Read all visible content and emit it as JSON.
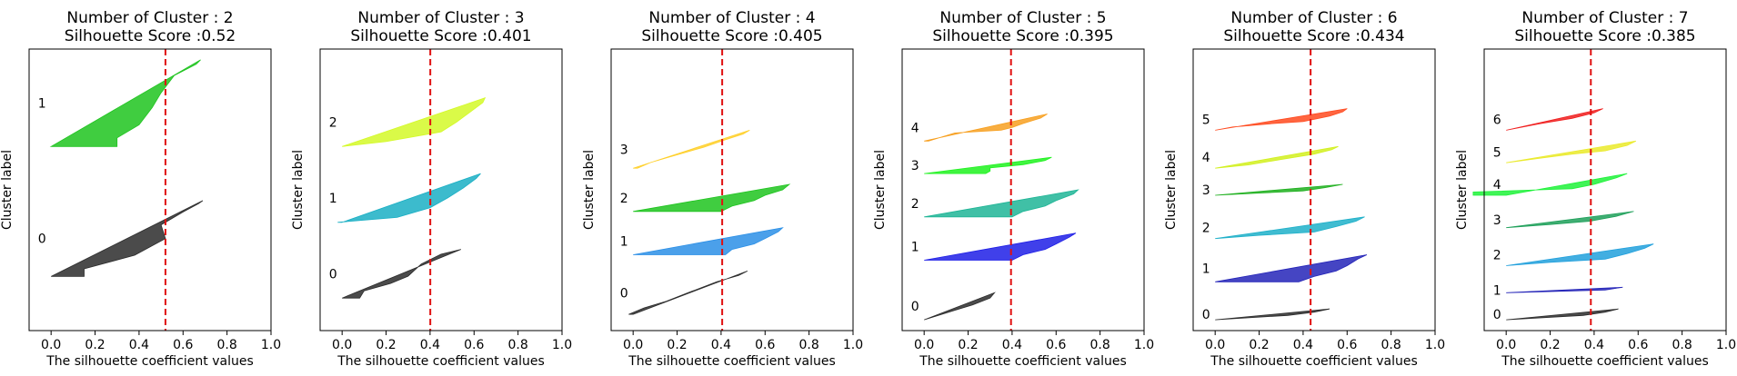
{
  "chart_data": [
    {
      "type": "area",
      "title": "Number of Cluster : 2",
      "subtitle": "Silhouette Score :0.52",
      "xlabel": "The silhouette coefficient values",
      "ylabel": "Cluster label",
      "xlim": [
        -0.1,
        1.0
      ],
      "xticks": [
        "0.0",
        "0.2",
        "0.4",
        "0.6",
        "0.8",
        "1.0"
      ],
      "score": 0.52,
      "clusters": [
        {
          "label": "0",
          "color": "#2b2b2b",
          "ymin": 10,
          "ymax": 24,
          "profile": [
            [
              0,
              0.69
            ],
            [
              0.04,
              0.67
            ],
            [
              0.15,
              0.6
            ],
            [
              0.32,
              0.5
            ],
            [
              0.5,
              0.52
            ],
            [
              0.72,
              0.38
            ],
            [
              0.9,
              0.15
            ],
            [
              1,
              0.15
            ]
          ]
        },
        {
          "label": "1",
          "color": "#1fc41f",
          "ymin": 34,
          "ymax": 50,
          "profile": [
            [
              0,
              0.68
            ],
            [
              0.05,
              0.66
            ],
            [
              0.18,
              0.56
            ],
            [
              0.38,
              0.5
            ],
            [
              0.55,
              0.46
            ],
            [
              0.75,
              0.4
            ],
            [
              0.9,
              0.3
            ],
            [
              1,
              0.3
            ]
          ]
        }
      ]
    },
    {
      "type": "area",
      "title": "Number of Cluster : 3",
      "subtitle": "Silhouette Score :0.401",
      "xlabel": "The silhouette coefficient values",
      "ylabel": "Cluster label",
      "xlim": [
        -0.1,
        1.0
      ],
      "xticks": [
        "0.0",
        "0.2",
        "0.4",
        "0.6",
        "0.8",
        "1.0"
      ],
      "score": 0.401,
      "clusters": [
        {
          "label": "0",
          "color": "#2b2b2b",
          "ymin": 6,
          "ymax": 15,
          "profile": [
            [
              0,
              0.54
            ],
            [
              0.1,
              0.45
            ],
            [
              0.3,
              0.36
            ],
            [
              0.55,
              0.3
            ],
            [
              0.7,
              0.22
            ],
            [
              0.85,
              0.1
            ],
            [
              1,
              0.08
            ]
          ]
        },
        {
          "label": "1",
          "color": "#1aafc4",
          "ymin": 20,
          "ymax": 29,
          "profile": [
            [
              0,
              0.63
            ],
            [
              0.1,
              0.61
            ],
            [
              0.3,
              0.55
            ],
            [
              0.5,
              0.48
            ],
            [
              0.7,
              0.4
            ],
            [
              0.9,
              0.25
            ],
            [
              1,
              -0.02
            ]
          ]
        },
        {
          "label": "2",
          "color": "#d4f928",
          "ymin": 34,
          "ymax": 43,
          "profile": [
            [
              0,
              0.65
            ],
            [
              0.1,
              0.64
            ],
            [
              0.3,
              0.58
            ],
            [
              0.5,
              0.52
            ],
            [
              0.7,
              0.45
            ],
            [
              0.9,
              0.2
            ],
            [
              1,
              0.0
            ]
          ]
        }
      ]
    },
    {
      "type": "area",
      "title": "Number of Cluster : 4",
      "subtitle": "Silhouette Score :0.405",
      "xlabel": "The silhouette coefficient values",
      "ylabel": "Cluster label",
      "xlim": [
        -0.1,
        1.0
      ],
      "xticks": [
        "0.0",
        "0.2",
        "0.4",
        "0.6",
        "0.8",
        "1.0"
      ],
      "score": 0.405,
      "clusters": [
        {
          "label": "0",
          "color": "#2b2b2b",
          "ymin": 3,
          "ymax": 11,
          "profile": [
            [
              0,
              0.52
            ],
            [
              0.1,
              0.48
            ],
            [
              0.25,
              0.38
            ],
            [
              0.5,
              0.25
            ],
            [
              0.7,
              0.15
            ],
            [
              0.85,
              0.05
            ],
            [
              1,
              -0.02
            ]
          ]
        },
        {
          "label": "1",
          "color": "#2b8fe6",
          "ymin": 14,
          "ymax": 19,
          "profile": [
            [
              0,
              0.68
            ],
            [
              0.15,
              0.66
            ],
            [
              0.4,
              0.6
            ],
            [
              0.6,
              0.55
            ],
            [
              0.8,
              0.45
            ],
            [
              1,
              0.42
            ]
          ]
        },
        {
          "label": "2",
          "color": "#1fc41f",
          "ymin": 22,
          "ymax": 27,
          "profile": [
            [
              0,
              0.71
            ],
            [
              0.2,
              0.68
            ],
            [
              0.4,
              0.6
            ],
            [
              0.6,
              0.55
            ],
            [
              0.8,
              0.45
            ],
            [
              1,
              0.4
            ]
          ]
        },
        {
          "label": "3",
          "color": "#ffd02b",
          "ymin": 30,
          "ymax": 37,
          "profile": [
            [
              0,
              0.53
            ],
            [
              0.1,
              0.5
            ],
            [
              0.25,
              0.42
            ],
            [
              0.45,
              0.32
            ],
            [
              0.65,
              0.2
            ],
            [
              0.85,
              0.08
            ],
            [
              1,
              0.02
            ]
          ]
        }
      ]
    },
    {
      "type": "area",
      "title": "Number of Cluster : 5",
      "subtitle": "Silhouette Score :0.395",
      "xlabel": "The silhouette coefficient values",
      "ylabel": "Cluster label",
      "xlim": [
        -0.1,
        1.0
      ],
      "xticks": [
        "0.0",
        "0.2",
        "0.4",
        "0.6",
        "0.8",
        "1.0"
      ],
      "score": 0.395,
      "clusters": [
        {
          "label": "0",
          "color": "#2b2b2b",
          "ymin": 2,
          "ymax": 7,
          "profile": [
            [
              0,
              0.32
            ],
            [
              0.2,
              0.3
            ],
            [
              0.45,
              0.22
            ],
            [
              0.65,
              0.14
            ],
            [
              0.85,
              0.06
            ],
            [
              1,
              0.0
            ]
          ]
        },
        {
          "label": "1",
          "color": "#1f1fe6",
          "ymin": 13,
          "ymax": 18,
          "profile": [
            [
              0,
              0.69
            ],
            [
              0.15,
              0.66
            ],
            [
              0.4,
              0.6
            ],
            [
              0.6,
              0.55
            ],
            [
              0.8,
              0.45
            ],
            [
              1,
              0.4
            ]
          ]
        },
        {
          "label": "2",
          "color": "#1fb596",
          "ymin": 21,
          "ymax": 26,
          "profile": [
            [
              0,
              0.7
            ],
            [
              0.15,
              0.68
            ],
            [
              0.4,
              0.6
            ],
            [
              0.6,
              0.55
            ],
            [
              0.8,
              0.45
            ],
            [
              1,
              0.4
            ]
          ]
        },
        {
          "label": "3",
          "color": "#1ff21f",
          "ymin": 29,
          "ymax": 32,
          "profile": [
            [
              0,
              0.58
            ],
            [
              0.2,
              0.55
            ],
            [
              0.45,
              0.45
            ],
            [
              0.65,
              0.3
            ],
            [
              0.85,
              0.3
            ],
            [
              1,
              0.28
            ]
          ]
        },
        {
          "label": "4",
          "color": "#f7a021",
          "ymin": 35,
          "ymax": 40,
          "profile": [
            [
              0,
              0.56
            ],
            [
              0.15,
              0.53
            ],
            [
              0.35,
              0.45
            ],
            [
              0.5,
              0.4
            ],
            [
              0.6,
              0.35
            ],
            [
              0.7,
              0.14
            ],
            [
              1,
              0.02
            ]
          ]
        }
      ]
    },
    {
      "type": "area",
      "title": "Number of Cluster : 6",
      "subtitle": "Silhouette Score :0.434",
      "xlabel": "The silhouette coefficient values",
      "ylabel": "Cluster label",
      "xlim": [
        -0.1,
        1.0
      ],
      "xticks": [
        "0.0",
        "0.2",
        "0.4",
        "0.6",
        "0.8",
        "1.0"
      ],
      "score": 0.434,
      "clusters": [
        {
          "label": "0",
          "color": "#2b2b2b",
          "ymin": 2,
          "ymax": 4,
          "profile": [
            [
              0,
              0.52
            ],
            [
              0.3,
              0.45
            ],
            [
              0.6,
              0.33
            ],
            [
              1,
              0.0
            ]
          ]
        },
        {
          "label": "1",
          "color": "#2424b8",
          "ymin": 9,
          "ymax": 14,
          "profile": [
            [
              0,
              0.69
            ],
            [
              0.15,
              0.65
            ],
            [
              0.4,
              0.6
            ],
            [
              0.6,
              0.55
            ],
            [
              0.8,
              0.45
            ],
            [
              1,
              0.38
            ]
          ]
        },
        {
          "label": "2",
          "color": "#1fb0c9",
          "ymin": 17,
          "ymax": 21,
          "profile": [
            [
              0,
              0.68
            ],
            [
              0.2,
              0.64
            ],
            [
              0.45,
              0.55
            ],
            [
              0.7,
              0.45
            ],
            [
              0.85,
              0.2
            ],
            [
              1,
              0.0
            ]
          ]
        },
        {
          "label": "3",
          "color": "#1fb01f",
          "ymin": 25,
          "ymax": 27,
          "profile": [
            [
              0,
              0.58
            ],
            [
              0.3,
              0.5
            ],
            [
              0.6,
              0.4
            ],
            [
              0.8,
              0.2
            ],
            [
              1,
              0.0
            ]
          ]
        },
        {
          "label": "4",
          "color": "#d2f020",
          "ymin": 30,
          "ymax": 34,
          "profile": [
            [
              0,
              0.56
            ],
            [
              0.15,
              0.53
            ],
            [
              0.35,
              0.45
            ],
            [
              0.6,
              0.3
            ],
            [
              0.85,
              0.15
            ],
            [
              1,
              0.0
            ]
          ]
        },
        {
          "label": "5",
          "color": "#ff4a1f",
          "ymin": 37,
          "ymax": 41,
          "profile": [
            [
              0,
              0.6
            ],
            [
              0.15,
              0.58
            ],
            [
              0.35,
              0.52
            ],
            [
              0.6,
              0.4
            ],
            [
              0.7,
              0.25
            ],
            [
              0.85,
              0.08
            ],
            [
              1,
              0.0
            ]
          ]
        }
      ]
    },
    {
      "type": "area",
      "title": "Number of Cluster : 7",
      "subtitle": "Silhouette Score :0.385",
      "xlabel": "The silhouette coefficient values",
      "ylabel": "Cluster label",
      "xlim": [
        -0.1,
        1.0
      ],
      "xticks": [
        "0.0",
        "0.2",
        "0.4",
        "0.6",
        "0.8",
        "1.0"
      ],
      "score": 0.385,
      "clusters": [
        {
          "label": "0",
          "color": "#2b2b2b",
          "ymin": 2,
          "ymax": 4,
          "profile": [
            [
              0,
              0.51
            ],
            [
              0.3,
              0.45
            ],
            [
              0.6,
              0.35
            ],
            [
              1,
              0.0
            ]
          ]
        },
        {
          "label": "1",
          "color": "#2424b8",
          "ymin": 7,
          "ymax": 8,
          "profile": [
            [
              0,
              0.53
            ],
            [
              0.5,
              0.45
            ],
            [
              1,
              0.0
            ]
          ]
        },
        {
          "label": "2",
          "color": "#21a0dc",
          "ymin": 12,
          "ymax": 16,
          "profile": [
            [
              0,
              0.67
            ],
            [
              0.2,
              0.63
            ],
            [
              0.45,
              0.55
            ],
            [
              0.7,
              0.45
            ],
            [
              0.85,
              0.2
            ],
            [
              1,
              0.0
            ]
          ]
        },
        {
          "label": "3",
          "color": "#1fa05a",
          "ymin": 19,
          "ymax": 22,
          "profile": [
            [
              0,
              0.58
            ],
            [
              0.3,
              0.5
            ],
            [
              0.6,
              0.38
            ],
            [
              0.8,
              0.2
            ],
            [
              1,
              0.0
            ]
          ]
        },
        {
          "label": "4",
          "color": "#1ff23a",
          "ymin": 25,
          "ymax": 29,
          "profile": [
            [
              0,
              0.55
            ],
            [
              0.2,
              0.5
            ],
            [
              0.5,
              0.4
            ],
            [
              0.7,
              0.3
            ],
            [
              0.85,
              -0.15
            ],
            [
              1,
              -0.15
            ]
          ]
        },
        {
          "label": "5",
          "color": "#eaea2b",
          "ymin": 31,
          "ymax": 35,
          "profile": [
            [
              0,
              0.59
            ],
            [
              0.2,
              0.55
            ],
            [
              0.45,
              0.45
            ],
            [
              0.6,
              0.3
            ],
            [
              0.8,
              0.15
            ],
            [
              1,
              0.0
            ]
          ]
        },
        {
          "label": "6",
          "color": "#f01f1f",
          "ymin": 37,
          "ymax": 41,
          "profile": [
            [
              0,
              0.44
            ],
            [
              0.2,
              0.4
            ],
            [
              0.45,
              0.3
            ],
            [
              0.7,
              0.15
            ],
            [
              1,
              0.0
            ]
          ]
        }
      ]
    }
  ]
}
